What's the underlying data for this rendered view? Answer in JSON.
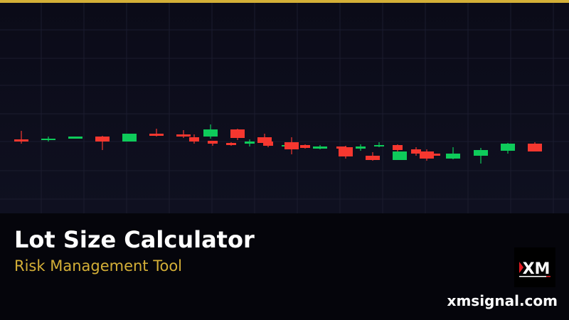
{
  "colors": {
    "accent": "#d4af37",
    "up": "#0ecb5a",
    "down": "#f6372f",
    "grid": "#1b1c2e"
  },
  "title": "Lot Size Calculator",
  "subtitle": "Risk Management Tool",
  "logo": {
    "text": "XM",
    "icon": "xm-logo"
  },
  "site": "xmsignal.com",
  "chart_data": {
    "type": "candlestick",
    "grid": true,
    "candles": [
      {
        "o": 104,
        "c": 101,
        "h": 116,
        "l": 98
      },
      {
        "o": 103,
        "c": 105,
        "h": 108,
        "l": 101
      },
      {
        "o": 105,
        "c": 108,
        "h": 108,
        "l": 105
      },
      {
        "o": 108,
        "c": 101,
        "h": 109,
        "l": 89
      },
      {
        "o": 101,
        "c": 112,
        "h": 112,
        "l": 101
      },
      {
        "o": 112,
        "c": 109,
        "h": 119,
        "l": 108
      },
      {
        "o": 111,
        "c": 108,
        "h": 117,
        "l": 106
      },
      {
        "o": 107,
        "c": 101,
        "h": 111,
        "l": 98
      },
      {
        "o": 108,
        "c": 118,
        "h": 125,
        "l": 105
      },
      {
        "o": 102,
        "c": 98,
        "h": 102,
        "l": 95
      },
      {
        "o": 99,
        "c": 96,
        "h": 100,
        "l": 95
      },
      {
        "o": 118,
        "c": 106,
        "h": 119,
        "l": 103
      },
      {
        "o": 98,
        "c": 101,
        "h": 104,
        "l": 94
      },
      {
        "o": 107,
        "c": 99,
        "h": 112,
        "l": 97
      },
      {
        "o": 101,
        "c": 95,
        "h": 101,
        "l": 93
      },
      {
        "o": 94,
        "c": 96,
        "h": 96,
        "l": 94
      },
      {
        "o": 100,
        "c": 90,
        "h": 107,
        "l": 83
      },
      {
        "o": 96,
        "c": 92,
        "h": 97,
        "l": 91
      },
      {
        "o": 91,
        "c": 94,
        "h": 96,
        "l": 90
      },
      {
        "o": 94,
        "c": 91,
        "h": 94,
        "l": 91
      },
      {
        "o": 93,
        "c": 80,
        "h": 95,
        "l": 77
      },
      {
        "o": 91,
        "c": 94,
        "h": 97,
        "l": 88
      },
      {
        "o": 81,
        "c": 75,
        "h": 86,
        "l": 74
      },
      {
        "o": 94,
        "c": 96,
        "h": 100,
        "l": 93
      },
      {
        "o": 96,
        "c": 89,
        "h": 97,
        "l": 81
      },
      {
        "o": 75,
        "c": 87,
        "h": 87,
        "l": 75
      },
      {
        "o": 90,
        "c": 84,
        "h": 93,
        "l": 81
      },
      {
        "o": 87,
        "c": 77,
        "h": 90,
        "l": 74
      },
      {
        "o": 84,
        "c": 81,
        "h": 84,
        "l": 81
      },
      {
        "o": 77,
        "c": 84,
        "h": 93,
        "l": 76
      },
      {
        "o": 81,
        "c": 89,
        "h": 92,
        "l": 70
      },
      {
        "o": 88,
        "c": 98,
        "h": 99,
        "l": 84
      },
      {
        "o": 98,
        "c": 87,
        "h": 100,
        "l": 87
      }
    ]
  }
}
